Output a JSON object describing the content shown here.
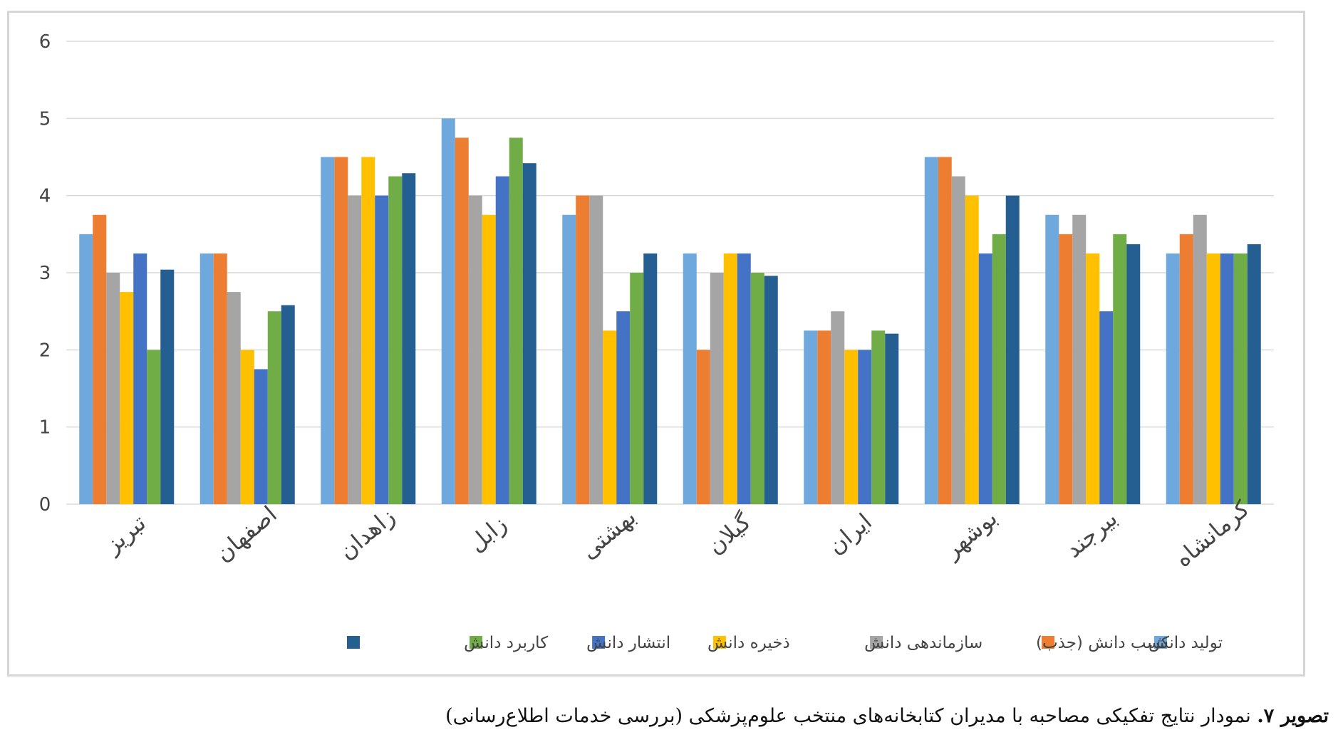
{
  "chart_data": {
    "type": "bar",
    "categories": [
      "تبریز",
      "اصفهان",
      "زاهدان",
      "زابل",
      "بهشتی",
      "گیلان",
      "ایران",
      "بوشهر",
      "بیرجند",
      "کرمانشاه"
    ],
    "series": [
      {
        "name": "تولید دانش",
        "color": "#6fa8dc",
        "values": [
          3.5,
          3.25,
          4.5,
          5.0,
          3.75,
          3.25,
          2.25,
          4.5,
          3.75,
          3.25
        ]
      },
      {
        "name": "کسب دانش (جذب)",
        "color": "#ed7d31",
        "values": [
          3.75,
          3.25,
          4.5,
          4.75,
          4.0,
          2.0,
          2.25,
          4.5,
          3.5,
          3.5
        ]
      },
      {
        "name": "سازماندهی دانش",
        "color": "#a5a5a5",
        "values": [
          3.0,
          2.75,
          4.0,
          4.0,
          4.0,
          3.0,
          2.5,
          4.25,
          3.75,
          3.75
        ]
      },
      {
        "name": "ذخیره دانش",
        "color": "#ffc000",
        "values": [
          2.75,
          2.0,
          4.5,
          3.75,
          2.25,
          3.25,
          2.0,
          4.0,
          3.25,
          3.25
        ]
      },
      {
        "name": "انتشار دانش",
        "color": "#4472c4",
        "values": [
          3.25,
          1.75,
          4.0,
          4.25,
          2.5,
          3.25,
          2.0,
          3.25,
          2.5,
          3.25
        ]
      },
      {
        "name": "کاربرد دانش",
        "color": "#70ad47",
        "values": [
          2.0,
          2.5,
          4.25,
          4.75,
          3.0,
          3.0,
          2.25,
          3.5,
          3.5,
          3.25
        ]
      },
      {
        "name": "",
        "color": "#255e91",
        "values": [
          3.04,
          2.58,
          4.29,
          4.42,
          3.25,
          2.96,
          2.21,
          4.0,
          3.37,
          3.37
        ]
      }
    ],
    "ylim": [
      0,
      6
    ],
    "yticks": [
      0,
      1,
      2,
      3,
      4,
      5,
      6
    ],
    "grid": true,
    "legend": "bottom"
  },
  "caption": {
    "label": "تصویر ۷.",
    "text": " نمودار نتایج تفکیکی مصاحبه با مدیران کتابخانه‌های منتخب علوم‌پزشکی (بررسی خدمات اطلاع‌رسانی)"
  }
}
